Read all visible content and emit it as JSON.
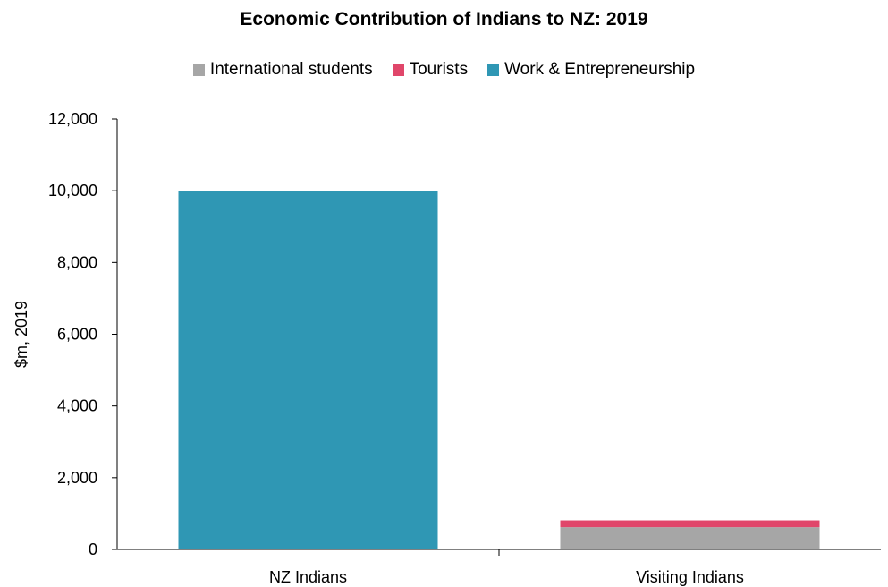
{
  "chart_data": {
    "type": "bar",
    "stacked": true,
    "title": "Economic Contribution of Indians to NZ: 2019",
    "xlabel": "",
    "ylabel": "$m, 2019",
    "ylim": [
      0,
      12000
    ],
    "yticks": [
      "0",
      "2,000",
      "4,000",
      "6,000",
      "8,000",
      "10,000",
      "12,000"
    ],
    "categories": [
      "NZ Indians",
      "Visiting Indians"
    ],
    "legend_position": "top",
    "grid": false,
    "series": [
      {
        "name": "International students",
        "color": "#a6a6a6",
        "values": [
          0,
          620
        ]
      },
      {
        "name": "Tourists",
        "color": "#e0466a",
        "values": [
          0,
          190
        ]
      },
      {
        "name": "Work & Entrepreneurship",
        "color": "#2f97b4",
        "values": [
          10000,
          0
        ]
      }
    ]
  }
}
